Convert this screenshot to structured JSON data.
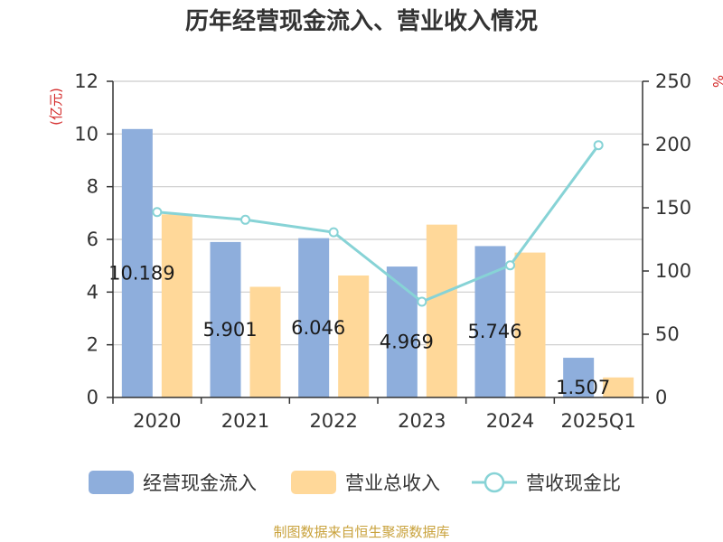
{
  "chart_data": {
    "type": "bar",
    "title": "历年经营现金流入、营业收入情况",
    "categories": [
      "2020",
      "2021",
      "2022",
      "2023",
      "2024",
      "2025Q1"
    ],
    "left_axis": {
      "unit": "(亿元)",
      "ylim": [
        0,
        12
      ],
      "ticks": [
        0,
        2,
        4,
        6,
        8,
        10,
        12
      ]
    },
    "right_axis": {
      "unit": "%",
      "ylim": [
        0,
        250
      ],
      "ticks": [
        0,
        50,
        100,
        150,
        200,
        250
      ]
    },
    "series": [
      {
        "name": "经营现金流入",
        "type": "bar",
        "axis": "left",
        "color": "#8eaedc",
        "values": [
          10.189,
          5.901,
          6.046,
          4.969,
          5.746,
          1.507
        ],
        "labels": [
          "10.189",
          "5.901",
          "6.046",
          "4.969",
          "5.746",
          "1.507"
        ]
      },
      {
        "name": "营业总收入",
        "type": "bar",
        "axis": "left",
        "color": "#ffd899",
        "values": [
          6.95,
          4.2,
          4.63,
          6.56,
          5.5,
          0.76
        ]
      },
      {
        "name": "营收现金比",
        "type": "line",
        "axis": "right",
        "color": "#87d3d6",
        "values": [
          146.6,
          140.5,
          130.6,
          75.7,
          104.5,
          199.5
        ]
      }
    ],
    "grid": true,
    "legend_position": "bottom"
  },
  "footer": {
    "source": "制图数据来自恒生聚源数据库"
  }
}
